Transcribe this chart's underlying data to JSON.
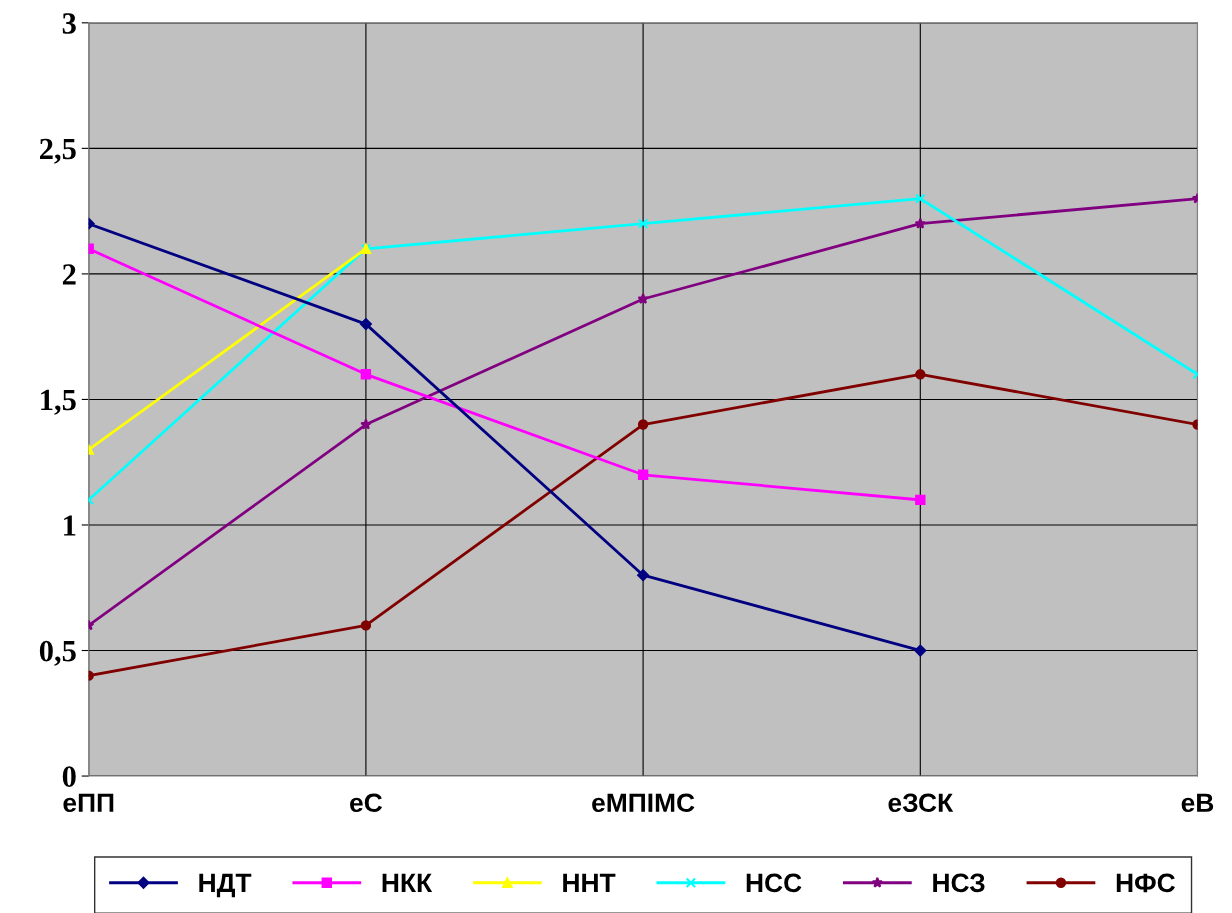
{
  "chart_data": {
    "type": "line",
    "categories": [
      "еПП",
      "еС",
      "еМПІМС",
      "еЗСК",
      "еВ"
    ],
    "series": [
      {
        "name": "НДТ",
        "color": "#000080",
        "marker": "diamond",
        "values": [
          2.2,
          1.8,
          0.8,
          0.5,
          null
        ]
      },
      {
        "name": "НКК",
        "color": "#ff00ff",
        "marker": "square",
        "values": [
          2.1,
          1.6,
          1.2,
          1.1,
          null
        ]
      },
      {
        "name": "ННТ",
        "color": "#ffff00",
        "marker": "triangle",
        "values": [
          1.3,
          2.1,
          null,
          null,
          null
        ]
      },
      {
        "name": "НСС",
        "color": "#00ffff",
        "marker": "cross",
        "values": [
          1.1,
          2.1,
          2.2,
          2.3,
          1.6
        ]
      },
      {
        "name": "НСЗ",
        "color": "#800080",
        "marker": "star",
        "values": [
          0.6,
          1.4,
          1.9,
          2.2,
          2.3
        ]
      },
      {
        "name": "НФС",
        "color": "#800000",
        "marker": "circle",
        "values": [
          0.4,
          0.6,
          1.4,
          1.6,
          1.4
        ]
      }
    ],
    "ylim": [
      0,
      3
    ],
    "yticks": [
      0,
      {
        "value": 0.5,
        "label": "0,5"
      },
      1,
      {
        "value": 1.5,
        "label": "1,5"
      },
      2,
      {
        "value": 2.5,
        "label": "2,5"
      },
      3
    ],
    "grid": true,
    "legend": "bottom",
    "line_style": "solid"
  }
}
